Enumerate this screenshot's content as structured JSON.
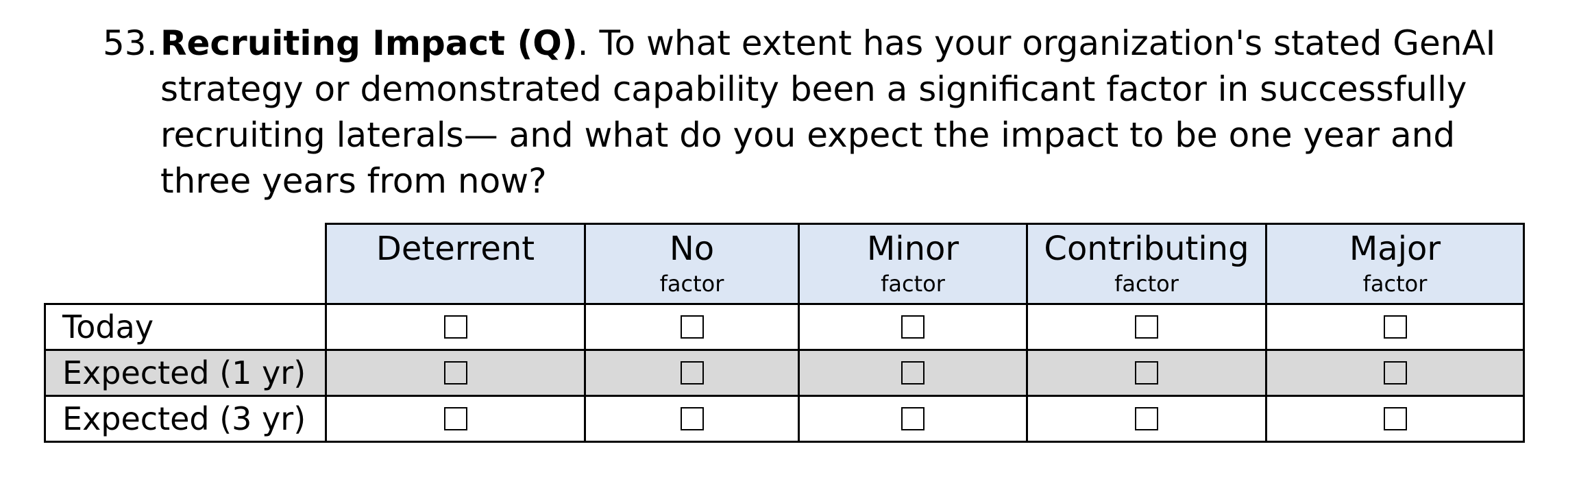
{
  "question": {
    "number": "53.",
    "title": "Recruiting Impact (Q)",
    "body": ". To what extent has your organization's stated GenAI strategy or demonstrated capability been a significant factor in successfully recruiting laterals— and what do you expect the impact to be one year and three years from now?"
  },
  "table": {
    "columns": [
      {
        "main": "Deterrent",
        "sub": ""
      },
      {
        "main": "No",
        "sub": "factor"
      },
      {
        "main": "Minor",
        "sub": "factor"
      },
      {
        "main": "Contributing",
        "sub": "factor"
      },
      {
        "main": "Major",
        "sub": "factor"
      }
    ],
    "rows": [
      {
        "label": "Today",
        "shaded": false
      },
      {
        "label": "Expected (1 yr)",
        "shaded": true
      },
      {
        "label": "Expected (3 yr)",
        "shaded": false
      }
    ],
    "header_color": "#dce6f4",
    "shaded_row_color": "#d9d9d9",
    "checkbox_icon": "empty-checkbox-icon"
  }
}
